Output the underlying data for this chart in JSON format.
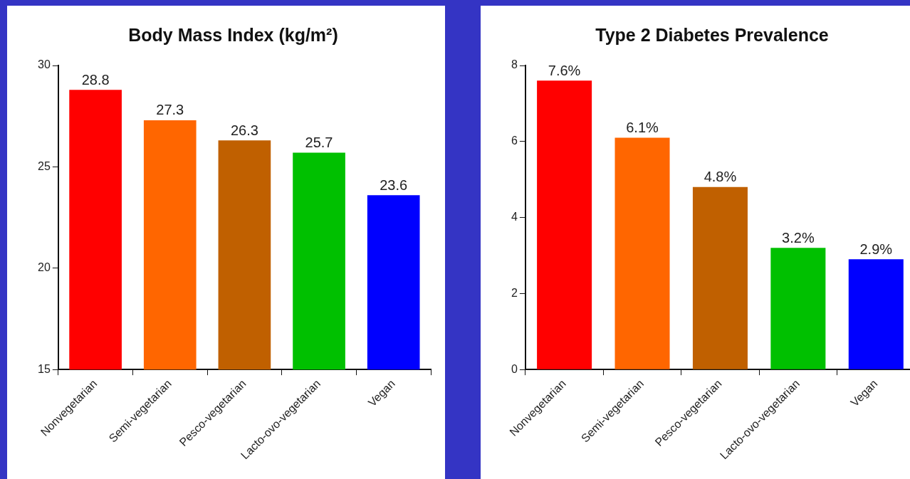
{
  "chart_data": [
    {
      "type": "bar",
      "title": "Body Mass Index (kg/m²)",
      "categories": [
        "Nonvegetarian",
        "Semi-vegetarian",
        "Pesco-vegetarian",
        "Lacto-ovo-vegetarian",
        "Vegan"
      ],
      "values": [
        28.8,
        27.3,
        26.3,
        25.7,
        23.6
      ],
      "colors": [
        "#ff0000",
        "#ff6600",
        "#c06000",
        "#00c000",
        "#0000ff"
      ],
      "ylim": [
        15,
        30
      ],
      "yticks": [
        15,
        20,
        25,
        30
      ],
      "data_labels": true
    },
    {
      "type": "bar",
      "title": "Type 2 Diabetes Prevalence",
      "categories": [
        "Nonvegetarian",
        "Semi-vegetarian",
        "Pesco-vegetarian",
        "Lacto-ovo-vegetarian",
        "Vegan"
      ],
      "values": [
        7.6,
        6.1,
        4.8,
        3.2,
        2.9
      ],
      "value_labels": [
        "7.6%",
        "6.1%",
        "4.8%",
        "3.2%",
        "2.9%"
      ],
      "colors": [
        "#ff0000",
        "#ff6600",
        "#c06000",
        "#00c000",
        "#0000ff"
      ],
      "ylim": [
        0,
        8
      ],
      "yticks": [
        0,
        2,
        4,
        6,
        8
      ]
    }
  ]
}
